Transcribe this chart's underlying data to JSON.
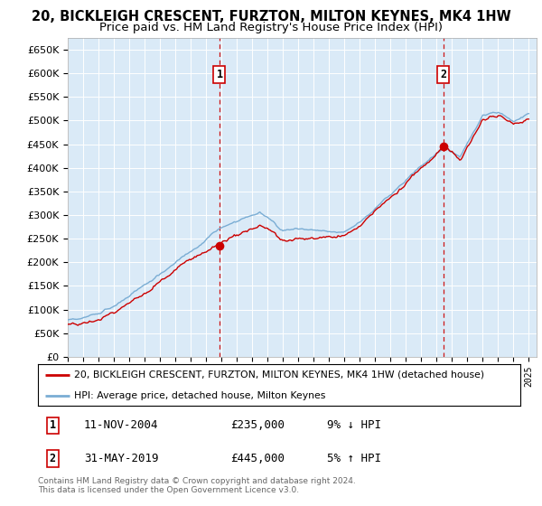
{
  "title": "20, BICKLEIGH CRESCENT, FURZTON, MILTON KEYNES, MK4 1HW",
  "subtitle": "Price paid vs. HM Land Registry's House Price Index (HPI)",
  "ylim": [
    0,
    675000
  ],
  "yticks": [
    0,
    50000,
    100000,
    150000,
    200000,
    250000,
    300000,
    350000,
    400000,
    450000,
    500000,
    550000,
    600000,
    650000
  ],
  "ytick_labels": [
    "£0",
    "£50K",
    "£100K",
    "£150K",
    "£200K",
    "£250K",
    "£300K",
    "£350K",
    "£400K",
    "£450K",
    "£500K",
    "£550K",
    "£600K",
    "£650K"
  ],
  "sale1_date": 2004.87,
  "sale1_price": 235000,
  "sale1_label": "1",
  "sale2_date": 2019.42,
  "sale2_price": 445000,
  "sale2_label": "2",
  "hpi_color": "#7aadd4",
  "price_color": "#cc0000",
  "vline_color": "#cc0000",
  "marker_color": "#cc0000",
  "background_color": "#daeaf7",
  "legend_entry1": "20, BICKLEIGH CRESCENT, FURZTON, MILTON KEYNES, MK4 1HW (detached house)",
  "legend_entry2": "HPI: Average price, detached house, Milton Keynes",
  "table_row1": [
    "1",
    "11-NOV-2004",
    "£235,000",
    "9% ↓ HPI"
  ],
  "table_row2": [
    "2",
    "31-MAY-2019",
    "£445,000",
    "5% ↑ HPI"
  ],
  "footer": "Contains HM Land Registry data © Crown copyright and database right 2024.\nThis data is licensed under the Open Government Licence v3.0.",
  "title_fontsize": 10.5,
  "subtitle_fontsize": 9.5,
  "label_box_color": "#cc0000"
}
